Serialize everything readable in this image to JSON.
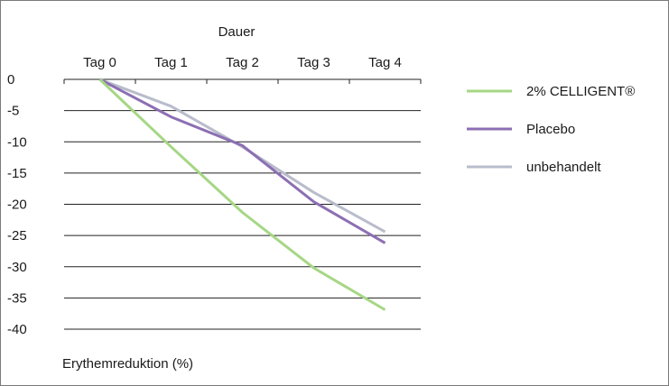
{
  "chart_data": {
    "type": "line",
    "xlabel": "Dauer",
    "ylabel": "Erythemreduktion (%)",
    "categories": [
      "Tag 0",
      "Tag 1",
      "Tag 2",
      "Tag 3",
      "Tag 4"
    ],
    "ylim": [
      -40,
      0
    ],
    "yticks": [
      0,
      -5,
      -10,
      -15,
      -20,
      -25,
      -30,
      -35,
      -40
    ],
    "x_axis_position": "top",
    "grid": "horizontal",
    "legend_position": "right",
    "series": [
      {
        "name": "2% CELLIGENT®",
        "color": "#a6d785",
        "values": [
          0,
          -10.8,
          -21.3,
          -30.2,
          -36.9
        ]
      },
      {
        "name": "Placebo",
        "color": "#8c6fb3",
        "values": [
          0,
          -6.0,
          -10.6,
          -19.6,
          -26.2
        ]
      },
      {
        "name": "unbehandelt",
        "color": "#b9bccb",
        "values": [
          0,
          -4.3,
          -10.8,
          -18.1,
          -24.4
        ]
      }
    ]
  }
}
